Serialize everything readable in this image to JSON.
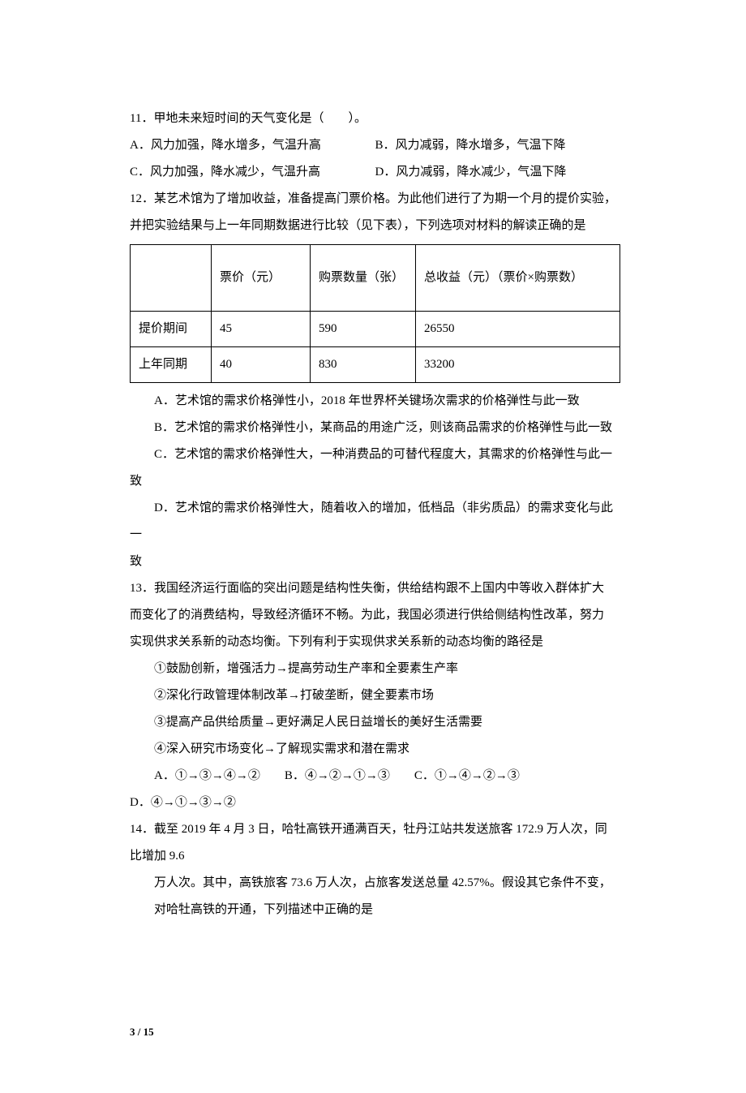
{
  "q11": {
    "stem": "11．甲地未来短时间的天气变化是（　　）。",
    "A": "A．风力加强，降水增多，气温升高",
    "B": "B．风力减弱，降水增多，气温下降",
    "C": "C．风力加强，降水减少，气温升高",
    "D": "D．风力减弱，降水减少，气温下降"
  },
  "q12": {
    "stem1": "12．某艺术馆为了增加收益，准备提高门票价格。为此他们进行了为期一个月的提价实验，",
    "stem2": "并把实验结果与上一年同期数据进行比较（见下表），下列选项对材料的解读正确的是",
    "table": {
      "headers": {
        "c0": "",
        "c1": "票价（元）",
        "c2": "购票数量（张）",
        "c3": "总收益（元）（票价×购票数）"
      },
      "row1": {
        "label": "提价期间",
        "price": "45",
        "qty": "590",
        "total": "26550"
      },
      "row2": {
        "label": "上年同期",
        "price": "40",
        "qty": "830",
        "total": "33200"
      }
    },
    "A": "A．艺术馆的需求价格弹性小，2018 年世界杯关键场次需求的价格弹性与此一致",
    "B": "B．艺术馆的需求价格弹性小，某商品的用途广泛，则该商品需求的价格弹性与此一致",
    "C": "C．艺术馆的需求价格弹性大，一种消费品的可替代程度大，其需求的价格弹性与此一致",
    "D": "D．艺术馆的需求价格弹性大，随着收入的增加，低档品（非劣质品）的需求变化与此一",
    "Dtail": "致"
  },
  "q13": {
    "stem1": "13．我国经济运行面临的突出问题是结构性失衡，供给结构跟不上国内中等收入群体扩大",
    "stem2": "而变化了的消费结构，导致经济循环不畅。为此，我国必须进行供给侧结构性改革，努力",
    "stem3": "实现供求关系新的动态均衡。下列有利于实现供求关系新的动态均衡的路径是",
    "i1": "①鼓励创新，增强活力→提高劳动生产率和全要素生产率",
    "i2": "②深化行政管理体制改革→打破垄断，健全要素市场",
    "i3": "③提高产品供给质量→更好满足人民日益增长的美好生活需要",
    "i4": "④深入研究市场变化→了解现实需求和潜在需求",
    "row": "A．①→③→④→②　　B．④→②→①→③　　C．①→④→②→③",
    "D": "D．④→①→③→②"
  },
  "q14": {
    "stem1": "14．截至 2019 年 4 月 3 日，哈牡高铁开通满百天，牡丹江站共发送旅客 172.9 万人次，同",
    "stem2": "比增加 9.6",
    "stem3": "万人次。其中，高铁旅客 73.6 万人次，占旅客发送总量 42.57%。假设其它条件不变，",
    "stem4": "对哈牡高铁的开通，下列描述中正确的是"
  },
  "footer": "3 / 15"
}
